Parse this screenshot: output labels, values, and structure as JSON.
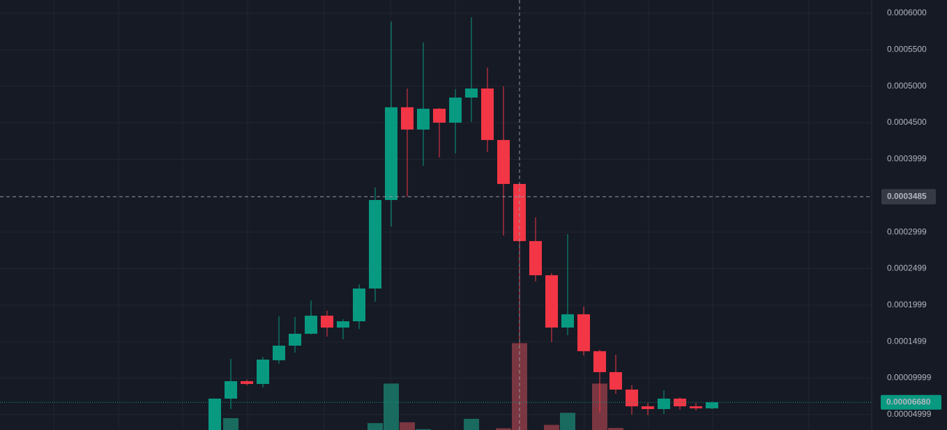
{
  "chart_data": {
    "type": "candlestick",
    "open": [
      2.5e-05,
      7.18e-05,
      9.57e-05,
      9.19e-05,
      0.0001244,
      0.0001444,
      0.0001607,
      0.0001855,
      0.0001692,
      0.0001778,
      0.0002227,
      0.000344,
      0.0004711,
      0.0004405,
      0.0004691,
      0.00045,
      0.0004844,
      0.0004968,
      0.0004262,
      0.000366,
      0.0002877,
      0.0002409,
      0.0001692,
      0.0001874,
      0.0001368,
      0.0001081,
      8.42e-05,
      6.13e-05,
      5.75e-05,
      7.18e-05,
      6.13e-05,
      5.85e-05
    ],
    "high": [
      7.18e-05,
      0.0001263,
      9.76e-05,
      0.0001291,
      0.0001845,
      0.0001836,
      0.0002065,
      0.0001922,
      0.0001807,
      0.0002285,
      0.0003612,
      0.0005885,
      0.0004968,
      0.0005599,
      0.0004701,
      0.0004959,
      0.0005943,
      0.0005255,
      0.0004997,
      0.000366,
      0.0003202,
      0.0002438,
      0.0002972,
      0.0001979,
      0.0001387,
      0.000132,
      9e-05,
      6.61e-05,
      8.33e-05,
      7.37e-05,
      6.61e-05,
      6.8e-05
    ],
    "low": [
      2.5e-05,
      5.75e-05,
      9e-05,
      8.71e-05,
      0.0001196,
      0.0001349,
      0.0001598,
      0.0001568,
      0.000153,
      0.0001673,
      0.0002046,
      0.0003077,
      0.0003488,
      0.0003908,
      0.0004023,
      0.000408,
      0.000451,
      0.0004099,
      0.0002953,
      0.0001406,
      0.0002323,
      0.0001492,
      0.0001587,
      0.000131,
      5.27e-05,
      7.85e-05,
      4.99e-05,
      4.89e-05,
      5.08e-05,
      5.66e-05,
      5.56e-05,
      5.75e-05
    ],
    "close": [
      7.18e-05,
      9.57e-05,
      9.19e-05,
      0.0001253,
      0.0001444,
      0.0001607,
      0.0001855,
      0.0001692,
      0.0001778,
      0.0002227,
      0.000344,
      0.0004711,
      0.0004405,
      0.0004691,
      0.00045,
      0.0004844,
      0.0004968,
      0.0004262,
      0.000366,
      0.0002877,
      0.0002409,
      0.0001692,
      0.0001874,
      0.0001368,
      0.0001081,
      8.42e-05,
      6.13e-05,
      5.75e-05,
      7.18e-05,
      6.13e-05,
      5.85e-05,
      6.68e-05
    ],
    "volume": [
      null,
      13.8,
      null,
      null,
      null,
      null,
      null,
      null,
      null,
      null,
      8,
      54,
      9,
      1,
      null,
      null,
      13,
      null,
      2,
      101,
      null,
      6,
      20,
      null,
      54,
      2.4,
      null,
      null,
      null,
      null,
      null,
      null
    ],
    "volume_ylim": [
      0,
      500
    ],
    "up_color": "#089981",
    "down_color": "#f23645",
    "volume_up_color": "#1a6b5f",
    "volume_down_color": "#7a3641",
    "ylim": [
      2.88e-05,
      0.0006181
    ],
    "yticks": [
      {
        "value": 0.0006,
        "label": "0.0006000"
      },
      {
        "value": 0.00055,
        "label": "0.0005500"
      },
      {
        "value": 0.0005,
        "label": "0.0005000"
      },
      {
        "value": 0.00045,
        "label": "0.0004500"
      },
      0.0003999,
      0.0002999,
      0.0002499,
      0.0001999,
      0.0001499,
      9.999e-05,
      4.999e-05
    ],
    "grid": true,
    "crosshair": {
      "value": 0.0003485
    },
    "last_price": {
      "value": 6.68e-05,
      "label": "0.00006680"
    }
  }
}
